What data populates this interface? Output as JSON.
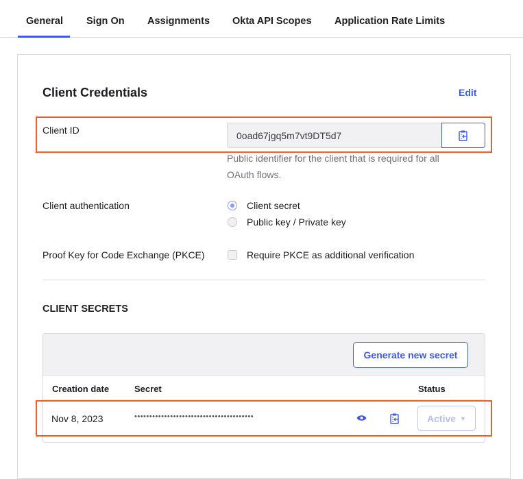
{
  "tabs": [
    {
      "label": "General",
      "selected": true
    },
    {
      "label": "Sign On"
    },
    {
      "label": "Assignments"
    },
    {
      "label": "Okta API Scopes"
    },
    {
      "label": "Application Rate Limits"
    }
  ],
  "credentials": {
    "title": "Client Credentials",
    "edit_label": "Edit",
    "client_id_label": "Client ID",
    "client_id_value": "0oad67jgq5m7vt9DT5d7",
    "client_id_help": "Public identifier for the client that is required for all OAuth flows.",
    "auth_label": "Client authentication",
    "auth_options": [
      {
        "label": "Client secret",
        "selected": true
      },
      {
        "label": "Public key / Private key",
        "selected": false
      }
    ],
    "pkce_label": "Proof Key for Code Exchange (PKCE)",
    "pkce_option": "Require PKCE as additional verification",
    "pkce_checked": false
  },
  "secrets": {
    "title": "CLIENT SECRETS",
    "generate_label": "Generate new secret",
    "columns": [
      "Creation date",
      "Secret",
      "Status"
    ],
    "rows": [
      {
        "created": "Nov 8, 2023",
        "secret": "••••••••••••••••••••••••••••••••••••••••",
        "status": "Active"
      }
    ]
  },
  "colors": {
    "accent": "#3f59e4",
    "highlight": "#e8602c"
  },
  "icons": {
    "copy": "clipboard-copy-icon",
    "reveal": "eye-icon",
    "dropdown": "caret-down-icon"
  }
}
